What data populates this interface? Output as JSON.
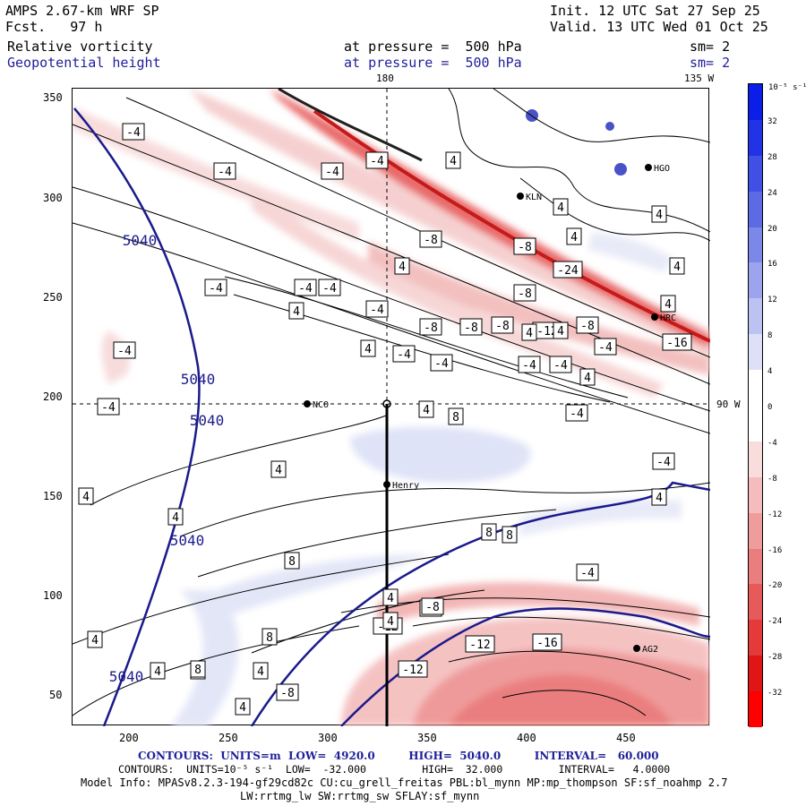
{
  "header": {
    "model": "AMPS 2.67-km WRF SP",
    "fcst": "Fcst.   97 h",
    "init": "Init. 12 UTC Sat 27 Sep 25",
    "valid": "Valid. 13 UTC Wed 01 Oct 25",
    "field1": "Relative vorticity",
    "field1_level": "at pressure =  500 hPa",
    "field1_sm": "sm= 2",
    "field2": "Geopotential height",
    "field2_level": "at pressure =  500 hPa",
    "field2_sm": "sm= 2"
  },
  "map_labels": {
    "lon_top_180": "180",
    "lon_top_135w": "135 W",
    "lat_right_90w": "90 W"
  },
  "stations": [
    "NCO",
    "Henry",
    "KLN",
    "HRC",
    "AG2",
    "HGO"
  ],
  "axes": {
    "x_ticks": [
      "200",
      "250",
      "300",
      "350",
      "400",
      "450"
    ],
    "y_ticks": [
      "50",
      "100",
      "150",
      "200",
      "250",
      "300",
      "350"
    ]
  },
  "height_labels": [
    "5040",
    "5040",
    "5040",
    "5040",
    "5040"
  ],
  "vort_labels": [
    "-4",
    "-4",
    "-4",
    "-4",
    "-4",
    "-4",
    "-4",
    "-4",
    "-4",
    "-4",
    "-4",
    "-4",
    "-4",
    "-4",
    "-4",
    "-4",
    "-4",
    "-4",
    "-4",
    "-8",
    "-8",
    "-8",
    "-8",
    "-8",
    "-8",
    "-8",
    "-8",
    "-8",
    "-12",
    "-12",
    "-12",
    "-12",
    "-16",
    "-16",
    "-24",
    "4",
    "4",
    "4",
    "4",
    "4",
    "4",
    "4",
    "4",
    "4",
    "4",
    "4",
    "4",
    "4",
    "4",
    "4",
    "4",
    "4",
    "4",
    "4",
    "4",
    "4",
    "4",
    "4",
    "4",
    "8",
    "8",
    "8",
    "8",
    "8",
    "8"
  ],
  "colorbar": {
    "unit": "10⁻⁵ s⁻¹",
    "labels": [
      "32",
      "28",
      "24",
      "20",
      "16",
      "12",
      "8",
      "4",
      "0",
      "-4",
      "-8",
      "-12",
      "-16",
      "-20",
      "-24",
      "-28",
      "-32"
    ]
  },
  "footer": {
    "line1": "CONTOURS:  UNITS=m  LOW=  4920.0         HIGH=  5040.0         INTERVAL=   60.000",
    "line2": "CONTOURS:  UNITS=10⁻⁵ s⁻¹  LOW=  -32.000         HIGH=  32.000         INTERVAL=   4.0000",
    "line3": "Model Info: MPASv8.2.3-194-gf29cd82c CU:cu_grell_freitas PBL:bl_mynn MP:mp_thompson SF:sf_noahmp 2.7",
    "line4": "LW:rrtmg_lw SW:rrtmg_sw SFLAY:sf_mynn"
  },
  "colors": {
    "height_contour": "#1a1a8c",
    "pos_vort": "#3333dd",
    "neg_vort": "#ee2222",
    "text_blue": "#1f1f9a"
  }
}
